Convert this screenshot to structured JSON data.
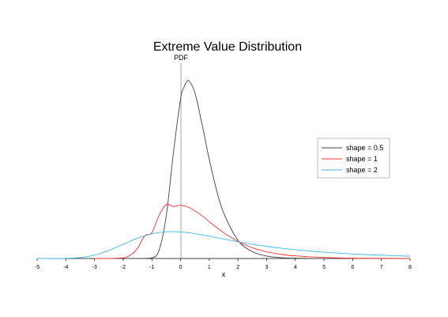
{
  "chart_data": {
    "type": "line",
    "title": "Extreme Value Distribution",
    "ylabel": "PDF",
    "xlabel": "x",
    "xlim": [
      -5,
      8
    ],
    "ylim": [
      0,
      1.35
    ],
    "xticks": [
      "-5",
      "-4",
      "-3",
      "-2",
      "-1",
      "0",
      "1",
      "2",
      "3",
      "4",
      "5",
      "6",
      "7",
      "8"
    ],
    "grid": false,
    "legend_position": "right",
    "series": [
      {
        "name": "shape = 0.5",
        "color": "#404040",
        "x": [
          -1.5,
          -1.0,
          -0.75,
          -0.5,
          -0.25,
          0.0,
          0.1,
          0.2,
          0.3,
          0.5,
          0.75,
          1.0,
          1.25,
          1.5,
          2.0,
          2.5,
          3.0,
          3.5,
          4.0,
          5.0,
          6.0,
          7.0,
          8.0
        ],
        "y": [
          0.0,
          0.0045,
          0.057,
          0.293,
          0.729,
          1.104,
          1.175,
          1.216,
          1.227,
          1.146,
          0.927,
          0.686,
          0.477,
          0.316,
          0.126,
          0.047,
          0.017,
          0.006,
          0.002,
          0.0,
          0.0,
          0.0,
          0.0
        ]
      },
      {
        "name": "shape = 1",
        "color": "#ff3030",
        "x": [
          -3.0,
          -2.5,
          -2.0,
          -1.75,
          -1.5,
          -1.25,
          -1.0,
          -0.75,
          -0.5,
          -0.25,
          0.0,
          0.25,
          0.5,
          0.75,
          1.0,
          1.25,
          1.5,
          2.0,
          2.5,
          3.0,
          3.5,
          4.0,
          5.0,
          6.0,
          7.0,
          8.0
        ],
        "y": [
          0.0,
          0.0,
          0.005,
          0.023,
          0.07,
          0.156,
          0.179,
          0.299,
          0.372,
          0.36,
          0.368,
          0.356,
          0.33,
          0.296,
          0.255,
          0.216,
          0.179,
          0.118,
          0.075,
          0.047,
          0.029,
          0.018,
          0.007,
          0.002,
          0.001,
          0.0003
        ]
      },
      {
        "name": "shape = 2",
        "color": "#3fb8e6",
        "x": [
          -5.0,
          -4.5,
          -4.0,
          -3.5,
          -3.0,
          -2.5,
          -2.0,
          -1.5,
          -1.0,
          -0.5,
          0.0,
          0.5,
          1.0,
          1.5,
          2.0,
          2.5,
          3.0,
          3.5,
          4.0,
          4.5,
          5.0,
          5.5,
          6.0,
          6.5,
          7.0,
          7.5,
          8.0
        ],
        "y": [
          0.0,
          0.0001,
          0.0011,
          0.0064,
          0.0233,
          0.0557,
          0.0988,
          0.1402,
          0.1704,
          0.1847,
          0.1839,
          0.172,
          0.1543,
          0.1347,
          0.1159,
          0.0989,
          0.084,
          0.0713,
          0.0606,
          0.0514,
          0.0436,
          0.037,
          0.0313,
          0.0266,
          0.0225,
          0.019,
          0.016
        ]
      }
    ]
  }
}
